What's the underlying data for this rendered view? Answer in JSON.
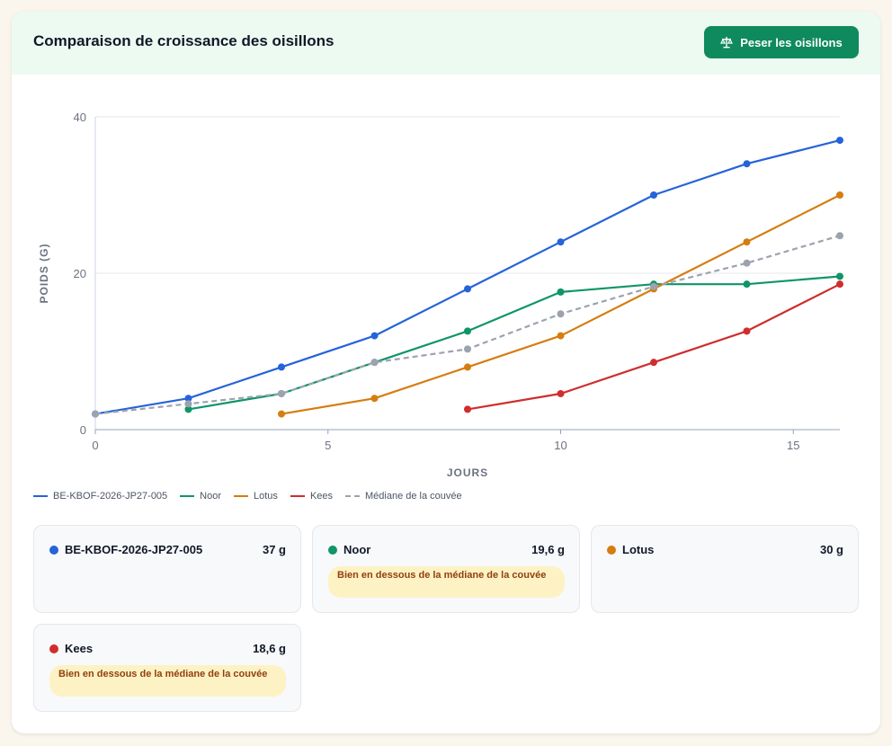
{
  "header": {
    "title": "Comparaison de croissance des oisillons",
    "weigh_button_label": "Peser les oisillons"
  },
  "chart_data": {
    "type": "line",
    "xlabel": "JOURS",
    "ylabel": "POIDS (G)",
    "xlim": [
      0,
      16
    ],
    "ylim": [
      0,
      40
    ],
    "x_ticks": [
      0,
      5,
      10,
      15
    ],
    "y_ticks": [
      0,
      20,
      40
    ],
    "grid": true,
    "legend_position": "bottom-left",
    "series": [
      {
        "name": "BE-KBOF-2026-JP27-005",
        "color": "#2563d9",
        "dashed": false,
        "points": [
          [
            0,
            2
          ],
          [
            2,
            4
          ],
          [
            4,
            8
          ],
          [
            6,
            12
          ],
          [
            8,
            18
          ],
          [
            10,
            24
          ],
          [
            12,
            30
          ],
          [
            14,
            34
          ],
          [
            16,
            37
          ]
        ]
      },
      {
        "name": "Noor",
        "color": "#0f9566",
        "dashed": false,
        "points": [
          [
            2,
            2.6
          ],
          [
            4,
            4.6
          ],
          [
            6,
            8.6
          ],
          [
            8,
            12.6
          ],
          [
            10,
            17.6
          ],
          [
            12,
            18.6
          ],
          [
            14,
            18.6
          ],
          [
            16,
            19.6
          ]
        ]
      },
      {
        "name": "Lotus",
        "color": "#d57d0f",
        "dashed": false,
        "points": [
          [
            4,
            2
          ],
          [
            6,
            4
          ],
          [
            8,
            8
          ],
          [
            10,
            12
          ],
          [
            12,
            18
          ],
          [
            14,
            24
          ],
          [
            16,
            30
          ]
        ]
      },
      {
        "name": "Kees",
        "color": "#d02d2d",
        "dashed": false,
        "points": [
          [
            8,
            2.6
          ],
          [
            10,
            4.6
          ],
          [
            12,
            8.6
          ],
          [
            14,
            12.6
          ],
          [
            16,
            18.6
          ]
        ]
      },
      {
        "name": "Médiane de la couvée",
        "color": "#9ca3af",
        "dashed": true,
        "points": [
          [
            0,
            2
          ],
          [
            2,
            3.3
          ],
          [
            4,
            4.6
          ],
          [
            6,
            8.6
          ],
          [
            8,
            10.3
          ],
          [
            10,
            14.8
          ],
          [
            12,
            18.3
          ],
          [
            14,
            21.3
          ],
          [
            16,
            24.8
          ]
        ]
      }
    ]
  },
  "birds": [
    {
      "name": "BE-KBOF-2026-JP27-005",
      "weight": "37 g",
      "color": "#2563d9",
      "badge": ""
    },
    {
      "name": "Noor",
      "weight": "19,6 g",
      "color": "#0f9566",
      "badge": "Bien en dessous de la médiane de la couvée"
    },
    {
      "name": "Lotus",
      "weight": "30 g",
      "color": "#d57d0f",
      "badge": ""
    },
    {
      "name": "Kees",
      "weight": "18,6 g",
      "color": "#d02d2d",
      "badge": "Bien en dessous de la médiane de la couvée"
    }
  ]
}
